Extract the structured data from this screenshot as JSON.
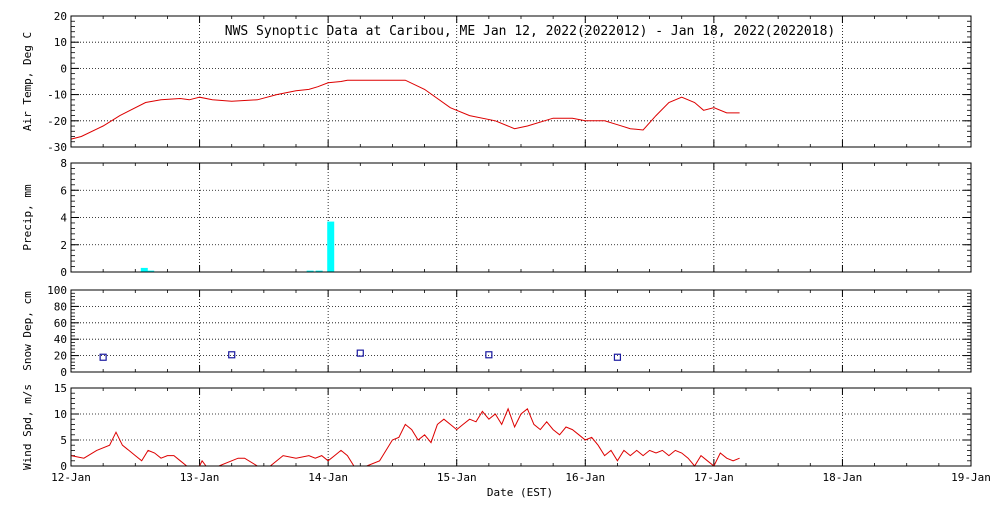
{
  "chart_data": {
    "title": "NWS Synoptic Data at Caribou, ME   Jan 12, 2022(2022012) - Jan 18, 2022(2022018)",
    "xlabel": "Date (EST)",
    "x_ticks": [
      "12-Jan",
      "13-Jan",
      "14-Jan",
      "15-Jan",
      "16-Jan",
      "17-Jan",
      "18-Jan",
      "19-Jan"
    ],
    "xlim_days": [
      0,
      7
    ],
    "grid": true,
    "panels": [
      {
        "type": "line",
        "ylabel": "Air Temp, Deg C",
        "ylim": [
          -30,
          20
        ],
        "yticks": [
          20,
          10,
          0,
          -10,
          -20,
          -30
        ],
        "color": "#dd0000",
        "x": [
          0,
          0.08,
          0.25,
          0.38,
          0.58,
          0.7,
          0.85,
          0.92,
          1.0,
          1.1,
          1.25,
          1.45,
          1.6,
          1.75,
          1.85,
          1.92,
          2.0,
          2.1,
          2.15,
          2.3,
          2.45,
          2.6,
          2.75,
          2.95,
          3.1,
          3.3,
          3.45,
          3.55,
          3.75,
          3.9,
          4.0,
          4.15,
          4.25,
          4.35,
          4.45,
          4.55,
          4.65,
          4.75,
          4.85,
          4.92,
          5.0,
          5.1,
          5.15,
          5.2
        ],
        "y": [
          -27,
          -26,
          -22,
          -18,
          -13,
          -12,
          -11.5,
          -12,
          -11,
          -12,
          -12.5,
          -12,
          -10,
          -8.5,
          -8,
          -7,
          -5.5,
          -5,
          -4.5,
          -4.5,
          -4.5,
          -4.5,
          -8,
          -15,
          -18,
          -20,
          -23,
          -22,
          -19,
          -19,
          -20,
          -20,
          -21.5,
          -23,
          -23.5,
          -18,
          -13,
          -11,
          -13,
          -16,
          -15,
          -17,
          -17,
          -17
        ]
      },
      {
        "type": "bar",
        "ylabel": "Precip, mm",
        "ylim": [
          0,
          8
        ],
        "yticks": [
          8,
          6,
          4,
          2,
          0
        ],
        "color": "#00ffff",
        "x": [
          0.57,
          0.62,
          1.86,
          1.93,
          2.02
        ],
        "values": [
          0.3,
          0.1,
          0.1,
          0.1,
          3.7
        ]
      },
      {
        "type": "scatter",
        "ylabel": "Snow Dep, cm",
        "ylim": [
          0,
          100
        ],
        "yticks": [
          100,
          80,
          60,
          40,
          20,
          0
        ],
        "color": "#1a1aa0",
        "marker": "open-square",
        "x": [
          0.25,
          1.25,
          2.25,
          3.25,
          4.25
        ],
        "y": [
          18,
          21,
          23,
          21,
          18
        ]
      },
      {
        "type": "line",
        "ylabel": "Wind Spd, m/s",
        "ylim": [
          0,
          15
        ],
        "yticks": [
          15,
          10,
          5,
          0
        ],
        "color": "#dd0000",
        "x": [
          0,
          0.1,
          0.2,
          0.3,
          0.35,
          0.4,
          0.45,
          0.5,
          0.55,
          0.6,
          0.65,
          0.7,
          0.75,
          0.8,
          0.85,
          0.9,
          0.95,
          1.0,
          1.02,
          1.05,
          1.1,
          1.15,
          1.3,
          1.35,
          1.45,
          1.5,
          1.55,
          1.65,
          1.75,
          1.85,
          1.9,
          1.95,
          2.0,
          2.05,
          2.1,
          2.15,
          2.2,
          2.25,
          2.3,
          2.4,
          2.5,
          2.55,
          2.6,
          2.65,
          2.7,
          2.75,
          2.8,
          2.85,
          2.9,
          2.95,
          3.0,
          3.05,
          3.1,
          3.15,
          3.2,
          3.25,
          3.3,
          3.35,
          3.4,
          3.45,
          3.5,
          3.55,
          3.6,
          3.65,
          3.7,
          3.75,
          3.8,
          3.85,
          3.9,
          3.95,
          4.0,
          4.05,
          4.1,
          4.15,
          4.2,
          4.25,
          4.3,
          4.35,
          4.4,
          4.45,
          4.5,
          4.55,
          4.6,
          4.65,
          4.7,
          4.75,
          4.8,
          4.85,
          4.9,
          4.95,
          5.0,
          5.05,
          5.1,
          5.15,
          5.2
        ],
        "y": [
          2,
          1.5,
          3,
          4,
          6.5,
          4,
          3,
          2,
          1,
          3,
          2.5,
          1.5,
          2,
          2,
          1,
          0,
          0,
          0,
          1,
          0,
          0,
          0,
          1.5,
          1.5,
          0,
          0,
          0,
          2,
          1.5,
          2,
          1.5,
          2,
          1,
          2,
          3,
          2,
          0,
          0,
          0,
          1,
          5,
          5.5,
          8,
          7,
          5,
          6,
          4.5,
          8,
          9,
          8,
          7,
          8,
          9,
          8.5,
          10.5,
          9,
          10,
          8,
          11,
          7.5,
          10,
          11,
          8,
          7,
          8.5,
          7,
          6,
          7.5,
          7,
          6,
          5,
          5.5,
          4,
          2,
          3,
          1,
          3,
          2,
          3,
          2,
          3,
          2.5,
          3,
          2,
          3,
          2.5,
          1.5,
          0,
          2,
          1,
          0,
          2.5,
          1.5,
          1,
          1.5
        ]
      }
    ]
  }
}
